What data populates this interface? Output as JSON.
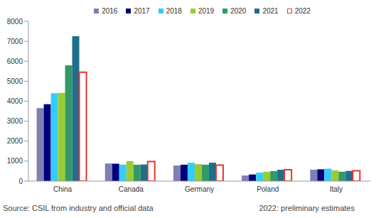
{
  "chart_data": {
    "type": "bar",
    "categories": [
      "China",
      "Canada",
      "Germany",
      "Poland",
      "Italy"
    ],
    "series": [
      {
        "name": "2016",
        "color": "#7f7fb2",
        "values": [
          3650,
          880,
          780,
          280,
          570
        ]
      },
      {
        "name": "2017",
        "color": "#00007f",
        "values": [
          3850,
          870,
          820,
          330,
          590
        ]
      },
      {
        "name": "2018",
        "color": "#33ccff",
        "values": [
          4400,
          820,
          920,
          420,
          620
        ]
      },
      {
        "name": "2019",
        "color": "#99cc33",
        "values": [
          4420,
          1000,
          850,
          470,
          540
        ]
      },
      {
        "name": "2020",
        "color": "#339966",
        "values": [
          5800,
          820,
          820,
          500,
          470
        ]
      },
      {
        "name": "2021",
        "color": "#1f6e8c",
        "values": [
          7250,
          830,
          920,
          570,
          510
        ]
      },
      {
        "name": "2022",
        "color": "#e8322c",
        "values": [
          5450,
          980,
          800,
          570,
          520
        ]
      }
    ],
    "ylim": [
      0,
      8000
    ],
    "yticks": [
      0,
      1000,
      2000,
      3000,
      4000,
      5000,
      6000,
      7000,
      8000
    ],
    "grid": false,
    "legend": "top",
    "annotations": [
      "Source: CSIL from industry and official data",
      "2022: preliminary estimates"
    ]
  }
}
